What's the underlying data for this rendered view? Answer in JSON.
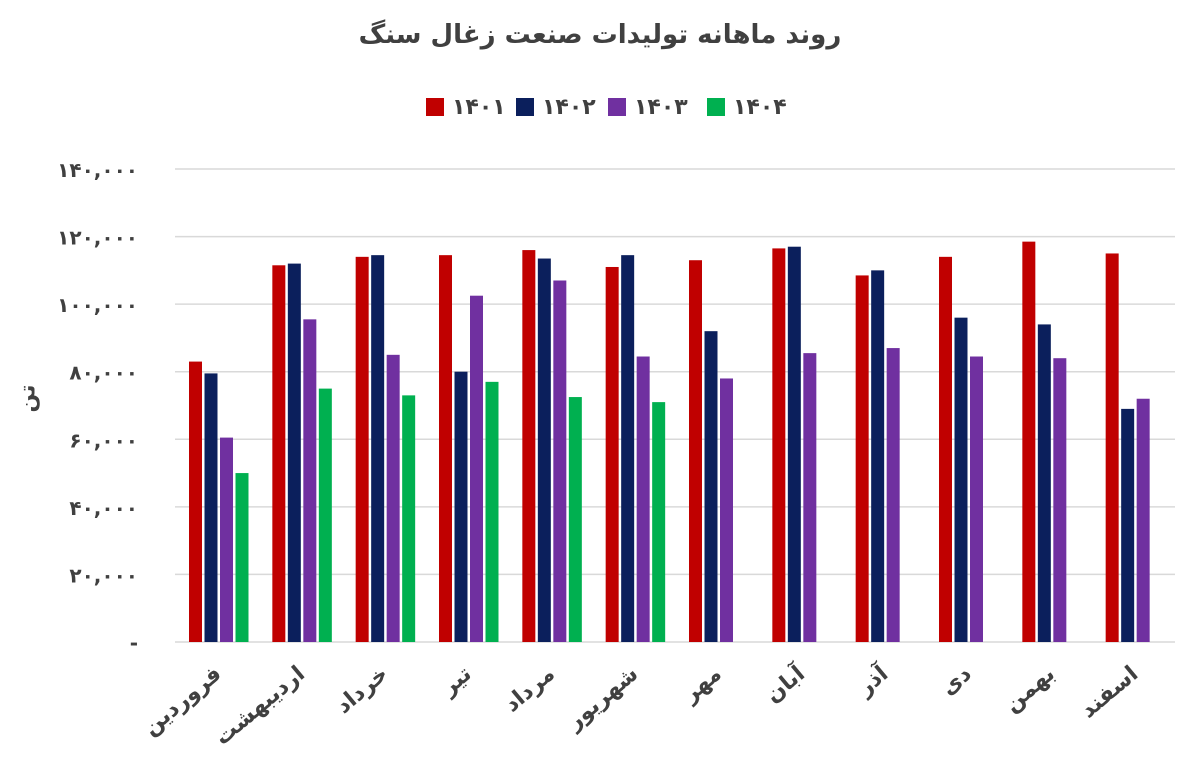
{
  "chart_data": {
    "type": "bar",
    "title": "روند ماهانه تولیدات صنعت زغال سنگ",
    "xlabel": "",
    "ylabel": "تن",
    "ylim": [
      0,
      140000
    ],
    "y_ticks": [
      0,
      20000,
      40000,
      60000,
      80000,
      100000,
      120000,
      140000
    ],
    "y_tick_labels": [
      "-",
      "۲۰,۰۰۰",
      "۴۰,۰۰۰",
      "۶۰,۰۰۰",
      "۸۰,۰۰۰",
      "۱۰۰,۰۰۰",
      "۱۲۰,۰۰۰",
      "۱۴۰,۰۰۰"
    ],
    "grid": true,
    "legend_position": "top-center",
    "categories": [
      "فروردین",
      "اردیبهشت",
      "خرداد",
      "تیر",
      "مرداد",
      "شهریور",
      "مهر",
      "آبان",
      "آذر",
      "دی",
      "بهمن",
      "اسفند"
    ],
    "series": [
      {
        "name": "۱۴۰۱",
        "color": "#c00000",
        "values": [
          83000,
          111500,
          114000,
          114500,
          116000,
          111000,
          113000,
          116500,
          108500,
          114000,
          118500,
          115000
        ]
      },
      {
        "name": "۱۴۰۲",
        "color": "#0b1f5c",
        "values": [
          79500,
          112000,
          114500,
          80000,
          113500,
          114500,
          92000,
          117000,
          110000,
          96000,
          94000,
          69000
        ]
      },
      {
        "name": "۱۴۰۳",
        "color": "#7030a0",
        "values": [
          60500,
          95500,
          85000,
          102500,
          107000,
          84500,
          78000,
          85500,
          87000,
          84500,
          84000,
          72000
        ]
      },
      {
        "name": "۱۴۰۴",
        "color": "#00b050",
        "values": [
          50000,
          75000,
          73000,
          77000,
          72500,
          71000,
          null,
          null,
          null,
          null,
          null,
          null
        ]
      }
    ]
  }
}
